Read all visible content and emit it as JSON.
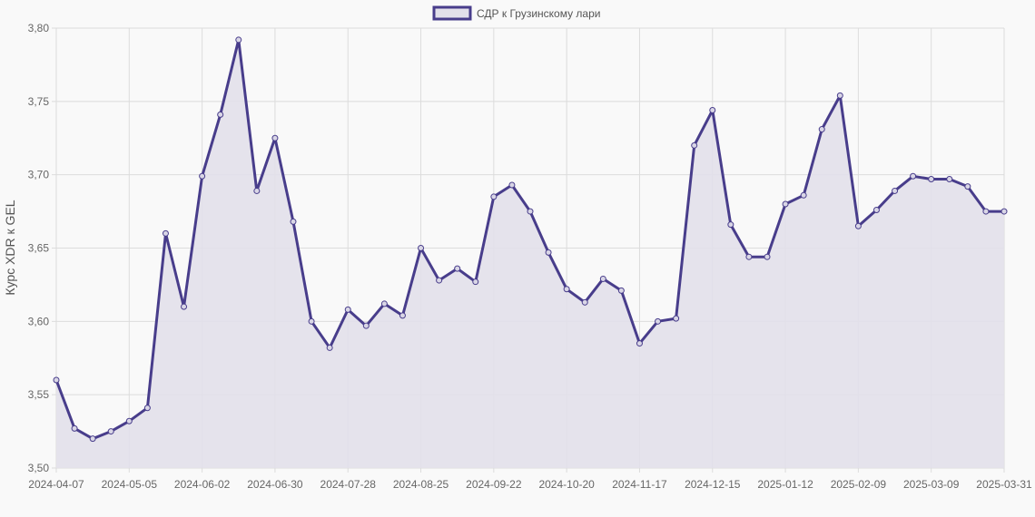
{
  "chart_data": {
    "type": "area",
    "title": "",
    "xlabel": "",
    "ylabel": "Курс XDR к GEL",
    "ylim": [
      3.5,
      3.8
    ],
    "y_ticks": [
      "3,50",
      "3,55",
      "3,60",
      "3,65",
      "3,70",
      "3,75",
      "3,80"
    ],
    "y_tick_values": [
      3.5,
      3.55,
      3.6,
      3.65,
      3.7,
      3.75,
      3.8
    ],
    "x_tick_labels": [
      "2024-04-07",
      "2024-05-05",
      "2024-06-02",
      "2024-06-30",
      "2024-07-28",
      "2024-08-25",
      "2024-09-22",
      "2024-10-20",
      "2024-11-17",
      "2024-12-15",
      "2025-01-12",
      "2025-02-09",
      "2025-03-09",
      "2025-03-31"
    ],
    "grid": true,
    "legend_placement": "top",
    "colors": {
      "line": "#483d8b",
      "fill": "#e2e0ea",
      "background": "#f9f9f9"
    },
    "x": [
      "2024-04-07",
      "2024-04-14",
      "2024-04-21",
      "2024-04-28",
      "2024-05-05",
      "2024-05-12",
      "2024-05-19",
      "2024-05-26",
      "2024-06-02",
      "2024-06-09",
      "2024-06-16",
      "2024-06-23",
      "2024-06-30",
      "2024-07-07",
      "2024-07-14",
      "2024-07-21",
      "2024-07-28",
      "2024-08-04",
      "2024-08-11",
      "2024-08-18",
      "2024-08-25",
      "2024-09-01",
      "2024-09-08",
      "2024-09-15",
      "2024-09-22",
      "2024-09-29",
      "2024-10-06",
      "2024-10-13",
      "2024-10-20",
      "2024-10-27",
      "2024-11-03",
      "2024-11-10",
      "2024-11-17",
      "2024-11-24",
      "2024-12-01",
      "2024-12-08",
      "2024-12-15",
      "2024-12-22",
      "2024-12-29",
      "2025-01-05",
      "2025-01-12",
      "2025-01-19",
      "2025-01-26",
      "2025-02-02",
      "2025-02-09",
      "2025-02-16",
      "2025-02-23",
      "2025-03-02",
      "2025-03-09",
      "2025-03-16",
      "2025-03-23",
      "2025-03-30",
      "2025-03-31"
    ],
    "series": [
      {
        "name": "СДР к Грузинскому лари",
        "values": [
          3.56,
          3.527,
          3.52,
          3.525,
          3.532,
          3.541,
          3.66,
          3.61,
          3.699,
          3.741,
          3.792,
          3.689,
          3.725,
          3.668,
          3.6,
          3.582,
          3.608,
          3.597,
          3.612,
          3.604,
          3.65,
          3.628,
          3.636,
          3.627,
          3.685,
          3.693,
          3.675,
          3.647,
          3.622,
          3.613,
          3.629,
          3.621,
          3.585,
          3.6,
          3.602,
          3.72,
          3.744,
          3.666,
          3.644,
          3.644,
          3.68,
          3.686,
          3.731,
          3.754,
          3.665,
          3.676,
          3.689,
          3.699,
          3.697,
          3.697,
          3.692,
          3.675,
          3.675
        ]
      }
    ]
  }
}
